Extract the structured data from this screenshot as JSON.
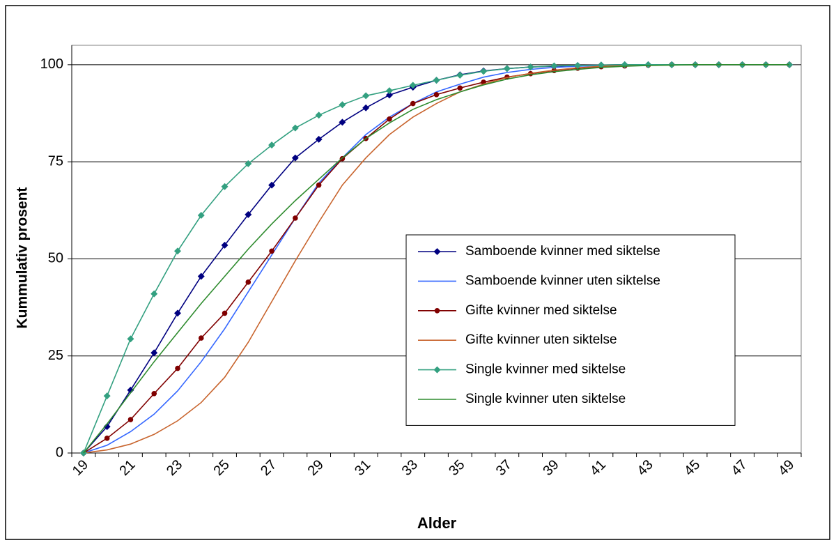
{
  "chart_data": {
    "type": "line",
    "y_label": "Kummulativ prosent",
    "x_label": "Alder",
    "categories": [
      "19",
      null,
      "21",
      null,
      "23",
      null,
      "25",
      null,
      "27",
      null,
      "29",
      null,
      "31",
      null,
      "33",
      null,
      "35",
      null,
      "37",
      null,
      "39",
      null,
      "41",
      null,
      "43",
      null,
      "45",
      null,
      "47",
      null,
      "49"
    ],
    "ylim": [
      0,
      105
    ],
    "yticks": [
      0,
      25,
      50,
      75,
      100
    ],
    "grid": true,
    "legend": "right",
    "series": [
      {
        "name": "Samboende kvinner med siktelse",
        "color": "#000080",
        "marker": "diamond",
        "values": [
          0,
          6.8,
          16.2,
          25.8,
          36,
          45.5,
          53.5,
          61.4,
          69,
          76,
          80.8,
          85.2,
          88.9,
          92.2,
          94.2,
          96,
          97.4,
          98.4,
          99,
          99.4,
          99.6,
          99.8,
          99.9,
          100,
          100,
          100,
          100,
          100,
          100,
          100,
          100
        ]
      },
      {
        "name": "Samboende kvinner uten siktelse",
        "color": "#3366ff",
        "marker": null,
        "values": [
          0,
          2,
          5.5,
          10,
          16,
          23.5,
          32,
          41.5,
          51,
          60.5,
          69.5,
          76,
          82,
          86.5,
          90,
          93,
          95,
          96.8,
          98,
          98.8,
          99.3,
          99.6,
          99.8,
          99.9,
          100,
          100,
          100,
          100,
          100,
          100,
          100
        ]
      },
      {
        "name": "Gifte kvinner med siktelse",
        "color": "#800000",
        "marker": "circle",
        "values": [
          0,
          3.8,
          8.6,
          15.3,
          21.8,
          29.6,
          36,
          44,
          52,
          60.5,
          69,
          75.8,
          81,
          86,
          90,
          92.3,
          94,
          95.5,
          96.8,
          97.7,
          98.5,
          99.1,
          99.5,
          99.7,
          99.9,
          100,
          100,
          100,
          100,
          100,
          100
        ]
      },
      {
        "name": "Gifte kvinner uten siktelse",
        "color": "#c8642d",
        "marker": null,
        "values": [
          0,
          0.8,
          2.3,
          4.8,
          8.3,
          13,
          19.5,
          28.5,
          39,
          49.5,
          59.5,
          69,
          76,
          82,
          86.5,
          90,
          93,
          95,
          96.7,
          97.8,
          98.6,
          99.2,
          99.6,
          99.8,
          99.9,
          100,
          100,
          100,
          100,
          100,
          100
        ]
      },
      {
        "name": "Single kvinner med siktelse",
        "color": "#33a080",
        "marker": "diamond",
        "values": [
          0,
          14.7,
          29.4,
          41,
          52,
          61.2,
          68.6,
          74.5,
          79.3,
          83.7,
          87,
          89.7,
          92,
          93.3,
          94.7,
          96,
          97.3,
          98.3,
          99,
          99.4,
          99.7,
          99.8,
          99.9,
          100,
          100,
          100,
          100,
          100,
          100,
          100,
          100
        ]
      },
      {
        "name": "Single kvinner uten siktelse",
        "color": "#2e8b2e",
        "marker": null,
        "values": [
          0,
          7.5,
          15.5,
          23.5,
          31,
          38.5,
          45.5,
          52.5,
          59,
          65,
          70.5,
          76,
          81,
          85,
          88.5,
          91,
          93,
          94.8,
          96.3,
          97.4,
          98.2,
          98.8,
          99.3,
          99.6,
          99.8,
          99.9,
          100,
          100,
          100,
          100,
          100
        ]
      }
    ]
  }
}
